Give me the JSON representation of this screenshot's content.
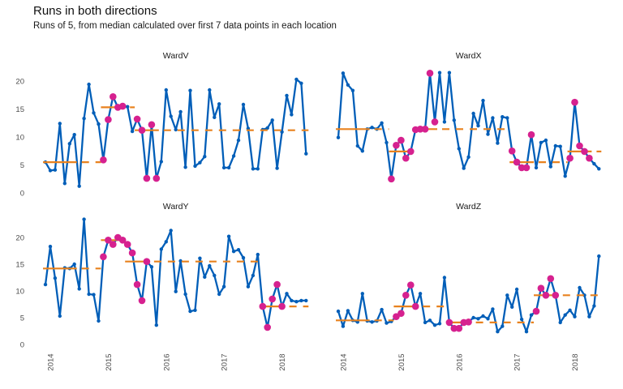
{
  "title": "Runs in both directions",
  "subtitle": "Runs of 5, from median calculated over first 7 data points in each location",
  "chart_data": {
    "type": "line",
    "title": "Runs in both directions",
    "subtitle": "Runs of 5, from median calculated over first 7 data points in each location",
    "layout": "2x2 facets, shared axes, no gridlines, white background",
    "x_axis": {
      "tick_labels": [
        "2014",
        "2015",
        "2016",
        "2017",
        "2018"
      ],
      "tick_months": [
        1.6,
        13.6,
        25.6,
        37.6,
        49.6
      ],
      "frequency": "monthly points"
    },
    "y_axis": {
      "ticks": [
        0,
        5,
        10,
        15,
        20
      ],
      "range": [
        0,
        23.5
      ]
    },
    "colors": {
      "line": "#005EB8",
      "highlight": "#D6218F",
      "median": "#E8821E",
      "axis_text": "#4d4d4d",
      "facet_text": "#1a1a1a"
    },
    "panels": [
      {
        "label": "WardV",
        "values": [
          5.5,
          4.0,
          4.1,
          12.4,
          1.7,
          8.8,
          10.4,
          1.2,
          13.3,
          19.4,
          14.3,
          12.3,
          5.9,
          13.1,
          17.2,
          15.3,
          15.5,
          15.4,
          11.0,
          13.2,
          11.2,
          2.6,
          12.2,
          2.6,
          5.6,
          18.4,
          13.7,
          11.3,
          14.5,
          4.6,
          18.3,
          4.8,
          5.4,
          6.5,
          18.4,
          13.5,
          15.9,
          4.5,
          4.5,
          6.6,
          9.4,
          15.8,
          11.5,
          4.3,
          4.3,
          11.3,
          11.6,
          13.0,
          4.4,
          10.9,
          17.4,
          14.0,
          20.3,
          19.6,
          7.0
        ],
        "highlighted": [
          12,
          13,
          14,
          15,
          16,
          19,
          20,
          21,
          22,
          23
        ],
        "medians": [
          {
            "value": 5.5,
            "solid": [
              0,
              6
            ],
            "dash": [
              7,
              11
            ]
          },
          {
            "value": 15.3,
            "solid": [
              12,
              16
            ],
            "dash": [
              17,
              18
            ]
          },
          {
            "value": 11.2,
            "solid": [
              19,
              23
            ],
            "dash": [
              24,
              54
            ]
          }
        ]
      },
      {
        "label": "WardX",
        "values": [
          9.9,
          21.4,
          19.3,
          18.3,
          8.4,
          7.5,
          11.4,
          11.7,
          11.4,
          12.5,
          9.0,
          2.5,
          8.5,
          9.4,
          6.2,
          7.4,
          11.3,
          11.4,
          11.4,
          21.4,
          12.7,
          21.5,
          12.7,
          21.5,
          13.0,
          7.9,
          4.4,
          6.4,
          14.2,
          12.0,
          16.5,
          10.5,
          13.4,
          8.9,
          13.6,
          13.4,
          7.5,
          5.5,
          4.5,
          4.5,
          10.4,
          4.5,
          9.0,
          9.4,
          4.7,
          8.4,
          8.3,
          3.0,
          6.2,
          16.2,
          8.4,
          7.4,
          6.2,
          5.2,
          4.3
        ],
        "highlighted": [
          11,
          12,
          13,
          14,
          15,
          16,
          17,
          18,
          19,
          20,
          36,
          37,
          38,
          39,
          40,
          48,
          49,
          50,
          51,
          52
        ],
        "medians": [
          {
            "value": 11.4,
            "solid": [
              0,
              6
            ],
            "dash": [
              7,
              10
            ]
          },
          {
            "value": 7.4,
            "solid": [
              11,
              15
            ],
            "dash": null
          },
          {
            "value": 11.4,
            "solid": [
              16,
              20
            ],
            "dash": [
              21,
              35
            ]
          },
          {
            "value": 5.5,
            "solid": [
              36,
              40
            ],
            "dash": [
              41,
              47
            ]
          },
          {
            "value": 7.4,
            "solid": [
              48,
              52
            ],
            "dash": [
              53,
              54
            ]
          }
        ]
      },
      {
        "label": "WardY",
        "values": [
          11.2,
          18.3,
          12.4,
          5.3,
          14.3,
          14.2,
          15.0,
          10.4,
          23.4,
          9.4,
          9.3,
          4.4,
          16.4,
          19.5,
          18.7,
          20.0,
          19.5,
          18.7,
          17.1,
          11.2,
          8.2,
          15.5,
          14.5,
          3.6,
          17.8,
          19.2,
          21.3,
          9.9,
          15.6,
          9.4,
          6.2,
          6.4,
          16.1,
          12.6,
          14.7,
          12.9,
          9.4,
          10.8,
          20.2,
          17.4,
          17.7,
          16.2,
          10.8,
          12.9,
          16.8,
          7.1,
          3.2,
          8.5,
          11.2,
          7.1,
          9.5,
          8.2,
          8.0,
          8.2,
          8.2
        ],
        "highlighted": [
          12,
          13,
          14,
          15,
          16,
          17,
          18,
          19,
          20,
          21,
          45,
          46,
          47,
          48,
          49
        ],
        "medians": [
          {
            "value": 14.2,
            "solid": [
              0,
              6
            ],
            "dash": [
              7,
              11
            ]
          },
          {
            "value": 19.5,
            "solid": [
              12,
              16
            ],
            "dash": null
          },
          {
            "value": 15.5,
            "solid": [
              17,
              21
            ],
            "dash": [
              22,
              44
            ]
          },
          {
            "value": 7.1,
            "solid": [
              45,
              49
            ],
            "dash": [
              50,
              54
            ]
          }
        ]
      },
      {
        "label": "WardZ",
        "values": [
          6.2,
          3.4,
          6.3,
          4.5,
          4.2,
          9.5,
          4.4,
          4.2,
          4.4,
          6.5,
          4.0,
          4.3,
          5.2,
          5.8,
          9.2,
          11.1,
          7.1,
          9.5,
          4.1,
          4.5,
          3.6,
          3.9,
          12.5,
          4.1,
          3.0,
          3.0,
          4.1,
          4.2,
          5.0,
          4.8,
          5.3,
          4.8,
          6.6,
          2.4,
          3.4,
          9.2,
          7.0,
          10.3,
          4.7,
          2.4,
          5.5,
          6.2,
          10.5,
          9.2,
          12.3,
          9.2,
          4.1,
          5.5,
          6.4,
          5.2,
          10.6,
          9.2,
          5.2,
          7.2,
          16.5
        ],
        "highlighted": [
          12,
          13,
          14,
          15,
          16,
          23,
          24,
          25,
          26,
          27,
          41,
          42,
          43,
          44,
          45
        ],
        "medians": [
          {
            "value": 4.5,
            "solid": [
              0,
              6
            ],
            "dash": [
              7,
              11
            ]
          },
          {
            "value": 7.1,
            "solid": [
              12,
              16
            ],
            "dash": [
              17,
              22
            ]
          },
          {
            "value": 4.1,
            "solid": [
              23,
              27
            ],
            "dash": [
              28,
              40
            ]
          },
          {
            "value": 9.2,
            "solid": [
              41,
              45
            ],
            "dash": [
              46,
              54
            ]
          }
        ]
      }
    ]
  }
}
